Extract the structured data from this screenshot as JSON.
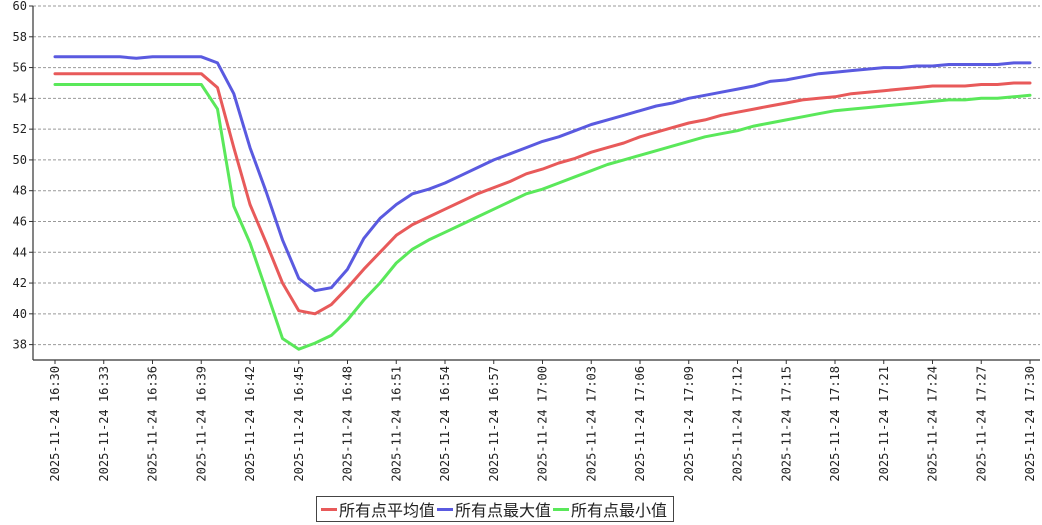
{
  "chart_data": {
    "type": "line",
    "title": "",
    "xlabel": "",
    "ylabel": "",
    "ylim": [
      37,
      60
    ],
    "yticks": [
      38,
      40,
      42,
      44,
      46,
      48,
      50,
      52,
      54,
      56,
      58,
      60
    ],
    "grid": "horizontal-dashed",
    "legend": "bottom-center",
    "x": [
      "2025-11-24 16:30",
      "2025-11-24 16:31",
      "2025-11-24 16:32",
      "2025-11-24 16:33",
      "2025-11-24 16:34",
      "2025-11-24 16:35",
      "2025-11-24 16:36",
      "2025-11-24 16:37",
      "2025-11-24 16:38",
      "2025-11-24 16:39",
      "2025-11-24 16:40",
      "2025-11-24 16:41",
      "2025-11-24 16:42",
      "2025-11-24 16:43",
      "2025-11-24 16:44",
      "2025-11-24 16:45",
      "2025-11-24 16:46",
      "2025-11-24 16:47",
      "2025-11-24 16:48",
      "2025-11-24 16:49",
      "2025-11-24 16:50",
      "2025-11-24 16:51",
      "2025-11-24 16:52",
      "2025-11-24 16:53",
      "2025-11-24 16:54",
      "2025-11-24 16:55",
      "2025-11-24 16:56",
      "2025-11-24 16:57",
      "2025-11-24 16:58",
      "2025-11-24 16:59",
      "2025-11-24 17:00",
      "2025-11-24 17:01",
      "2025-11-24 17:02",
      "2025-11-24 17:03",
      "2025-11-24 17:04",
      "2025-11-24 17:05",
      "2025-11-24 17:06",
      "2025-11-24 17:07",
      "2025-11-24 17:08",
      "2025-11-24 17:09",
      "2025-11-24 17:10",
      "2025-11-24 17:11",
      "2025-11-24 17:12",
      "2025-11-24 17:13",
      "2025-11-24 17:14",
      "2025-11-24 17:15",
      "2025-11-24 17:16",
      "2025-11-24 17:17",
      "2025-11-24 17:18",
      "2025-11-24 17:19",
      "2025-11-24 17:20",
      "2025-11-24 17:21",
      "2025-11-24 17:22",
      "2025-11-24 17:23",
      "2025-11-24 17:24",
      "2025-11-24 17:25",
      "2025-11-24 17:26",
      "2025-11-24 17:27",
      "2025-11-24 17:28",
      "2025-11-24 17:29",
      "2025-11-24 17:30"
    ],
    "xtick_labels": [
      "2025-11-24 16:30",
      "2025-11-24 16:33",
      "2025-11-24 16:36",
      "2025-11-24 16:39",
      "2025-11-24 16:42",
      "2025-11-24 16:45",
      "2025-11-24 16:48",
      "2025-11-24 16:51",
      "2025-11-24 16:54",
      "2025-11-24 16:57",
      "2025-11-24 17:00",
      "2025-11-24 17:03",
      "2025-11-24 17:06",
      "2025-11-24 17:09",
      "2025-11-24 17:12",
      "2025-11-24 17:15",
      "2025-11-24 17:18",
      "2025-11-24 17:21",
      "2025-11-24 17:24",
      "2025-11-24 17:27",
      "2025-11-24 17:30"
    ],
    "series": [
      {
        "name": "所有点平均值",
        "color": "#e85a5a",
        "values": [
          55.6,
          55.6,
          55.6,
          55.6,
          55.6,
          55.6,
          55.6,
          55.6,
          55.6,
          55.6,
          54.7,
          50.8,
          47.1,
          44.6,
          42.0,
          40.2,
          40.0,
          40.6,
          41.7,
          42.9,
          44.0,
          45.1,
          45.8,
          46.3,
          46.8,
          47.3,
          47.8,
          48.2,
          48.6,
          49.1,
          49.4,
          49.8,
          50.1,
          50.5,
          50.8,
          51.1,
          51.5,
          51.8,
          52.1,
          52.4,
          52.6,
          52.9,
          53.1,
          53.3,
          53.5,
          53.7,
          53.9,
          54.0,
          54.1,
          54.3,
          54.4,
          54.5,
          54.6,
          54.7,
          54.8,
          54.8,
          54.8,
          54.9,
          54.9,
          55.0,
          55.0
        ]
      },
      {
        "name": "所有点最大值",
        "color": "#5a5ae0",
        "values": [
          56.7,
          56.7,
          56.7,
          56.7,
          56.7,
          56.6,
          56.7,
          56.7,
          56.7,
          56.7,
          56.3,
          54.3,
          50.8,
          47.9,
          44.8,
          42.3,
          41.5,
          41.7,
          42.9,
          44.9,
          46.2,
          47.1,
          47.8,
          48.1,
          48.5,
          49.0,
          49.5,
          50.0,
          50.4,
          50.8,
          51.2,
          51.5,
          51.9,
          52.3,
          52.6,
          52.9,
          53.2,
          53.5,
          53.7,
          54.0,
          54.2,
          54.4,
          54.6,
          54.8,
          55.1,
          55.2,
          55.4,
          55.6,
          55.7,
          55.8,
          55.9,
          56.0,
          56.0,
          56.1,
          56.1,
          56.2,
          56.2,
          56.2,
          56.2,
          56.3,
          56.3
        ]
      },
      {
        "name": "所有点最小值",
        "color": "#5ae85a",
        "values": [
          54.9,
          54.9,
          54.9,
          54.9,
          54.9,
          54.9,
          54.9,
          54.9,
          54.9,
          54.9,
          53.3,
          47.0,
          44.6,
          41.5,
          38.4,
          37.7,
          38.1,
          38.6,
          39.6,
          40.9,
          42.0,
          43.3,
          44.2,
          44.8,
          45.3,
          45.8,
          46.3,
          46.8,
          47.3,
          47.8,
          48.1,
          48.5,
          48.9,
          49.3,
          49.7,
          50.0,
          50.3,
          50.6,
          50.9,
          51.2,
          51.5,
          51.7,
          51.9,
          52.2,
          52.4,
          52.6,
          52.8,
          53.0,
          53.2,
          53.3,
          53.4,
          53.5,
          53.6,
          53.7,
          53.8,
          53.9,
          53.9,
          54.0,
          54.0,
          54.1,
          54.2
        ]
      }
    ]
  }
}
